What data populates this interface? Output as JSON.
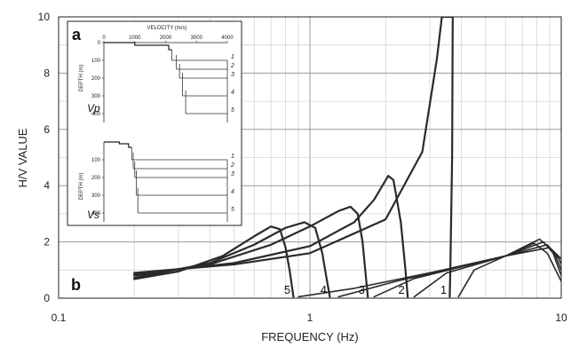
{
  "chart_data": {
    "type": "line",
    "panel_label": "b",
    "xlabel": "FREQUENCY (Hz)",
    "ylabel": "H/V VALUE",
    "xscale": "log",
    "xlim": [
      0.1,
      10
    ],
    "ylim": [
      0,
      10
    ],
    "x_ticks": [
      "0.1",
      "1",
      "10"
    ],
    "y_ticks": [
      "0",
      "2",
      "4",
      "6",
      "8",
      "10"
    ],
    "grid": true,
    "peak_curves": [
      {
        "label": "1",
        "points": [
          [
            0.2,
            0.9
          ],
          [
            0.5,
            1.2
          ],
          [
            1,
            1.6
          ],
          [
            2,
            2.8
          ],
          [
            2.8,
            5.2
          ],
          [
            3.2,
            8.5
          ],
          [
            3.35,
            10
          ],
          [
            3.7,
            10
          ],
          [
            3.68,
            5
          ],
          [
            3.62,
            1
          ],
          [
            3.6,
            0.05
          ]
        ]
      },
      {
        "label": "2",
        "points": [
          [
            0.2,
            0.85
          ],
          [
            0.5,
            1.25
          ],
          [
            1,
            1.85
          ],
          [
            1.5,
            2.7
          ],
          [
            1.8,
            3.5
          ],
          [
            2.05,
            4.35
          ],
          [
            2.15,
            4.2
          ],
          [
            2.3,
            2.7
          ],
          [
            2.4,
            1.0
          ],
          [
            2.45,
            0.05
          ]
        ]
      },
      {
        "label": "3",
        "points": [
          [
            0.2,
            0.8
          ],
          [
            0.4,
            1.2
          ],
          [
            0.7,
            1.9
          ],
          [
            1.0,
            2.55
          ],
          [
            1.3,
            3.1
          ],
          [
            1.45,
            3.25
          ],
          [
            1.55,
            3.0
          ],
          [
            1.62,
            2.0
          ],
          [
            1.66,
            1.0
          ],
          [
            1.7,
            0.05
          ]
        ]
      },
      {
        "label": "4",
        "points": [
          [
            0.2,
            0.72
          ],
          [
            0.4,
            1.25
          ],
          [
            0.6,
            1.9
          ],
          [
            0.8,
            2.5
          ],
          [
            0.95,
            2.7
          ],
          [
            1.05,
            2.5
          ],
          [
            1.12,
            1.6
          ],
          [
            1.16,
            0.8
          ],
          [
            1.2,
            0.05
          ]
        ]
      },
      {
        "label": "5",
        "points": [
          [
            0.2,
            0.68
          ],
          [
            0.3,
            0.95
          ],
          [
            0.45,
            1.5
          ],
          [
            0.6,
            2.2
          ],
          [
            0.7,
            2.55
          ],
          [
            0.76,
            2.45
          ],
          [
            0.8,
            1.8
          ],
          [
            0.83,
            1.0
          ],
          [
            0.86,
            0.05
          ]
        ]
      }
    ],
    "secondary_curves": [
      {
        "label": "1",
        "points": [
          [
            3.9,
            0.05
          ],
          [
            4.5,
            1.0
          ],
          [
            6,
            1.5
          ],
          [
            7.8,
            1.95
          ],
          [
            8.8,
            1.6
          ],
          [
            10,
            0.6
          ]
        ]
      },
      {
        "label": "2",
        "points": [
          [
            2.6,
            0.05
          ],
          [
            3.5,
            0.9
          ],
          [
            6,
            1.5
          ],
          [
            8.2,
            2.1
          ],
          [
            9.2,
            1.7
          ],
          [
            10,
            0.8
          ]
        ]
      },
      {
        "label": "3",
        "points": [
          [
            1.8,
            0.05
          ],
          [
            2.6,
            0.7
          ],
          [
            6,
            1.5
          ],
          [
            8.5,
            2.0
          ],
          [
            9.5,
            1.5
          ],
          [
            10,
            1.0
          ]
        ]
      },
      {
        "label": "4",
        "points": [
          [
            1.3,
            0.05
          ],
          [
            2.2,
            0.6
          ],
          [
            6,
            1.5
          ],
          [
            8.8,
            1.9
          ],
          [
            9.8,
            1.4
          ],
          [
            10,
            1.2
          ]
        ]
      },
      {
        "label": "5",
        "points": [
          [
            0.9,
            0.05
          ],
          [
            1.5,
            0.35
          ],
          [
            3,
            0.9
          ],
          [
            6,
            1.5
          ],
          [
            9,
            1.8
          ],
          [
            10,
            1.4
          ]
        ]
      }
    ],
    "inset": {
      "panel_label": "a",
      "top_plot": {
        "name": "Vp",
        "xlabel": "VELOCITY (m/s)",
        "ylabel": "DEPTH (m)",
        "x_ticks": [
          "0",
          "1000",
          "2000",
          "3000",
          "4000"
        ],
        "y_ticks": [
          "0",
          "100",
          "200",
          "300",
          "400"
        ],
        "xlim": [
          0,
          4000
        ],
        "ylim": [
          0,
          450
        ],
        "profile_labels": [
          "1",
          "2",
          "3",
          "4",
          "5"
        ],
        "interface_depths": [
          100,
          150,
          200,
          300,
          400
        ],
        "surface_steps": [
          [
            0,
            0
          ],
          [
            1000,
            0
          ],
          [
            1000,
            15
          ],
          [
            2100,
            15
          ],
          [
            2100,
            40
          ],
          [
            2200,
            40
          ]
        ],
        "columns": [
          {
            "v": 2200,
            "top": 40,
            "bottom": 100
          },
          {
            "v": 2350,
            "top": 70,
            "bottom": 150
          },
          {
            "v": 2450,
            "top": 120,
            "bottom": 200
          },
          {
            "v": 2550,
            "top": 170,
            "bottom": 300
          },
          {
            "v": 2650,
            "top": 270,
            "bottom": 400
          }
        ],
        "bedrock_velocity": 4000
      },
      "bottom_plot": {
        "name": "Vs",
        "ylabel": "DEPTH (m)",
        "y_ticks": [
          "100",
          "200",
          "300",
          "400"
        ],
        "xlim": [
          0,
          4000
        ],
        "ylim": [
          0,
          450
        ],
        "profile_labels": [
          "1",
          "2",
          "3",
          "4",
          "5"
        ],
        "interface_depths": [
          100,
          150,
          200,
          300,
          400
        ],
        "surface_steps": [
          [
            0,
            0
          ],
          [
            500,
            0
          ],
          [
            500,
            10
          ],
          [
            800,
            10
          ],
          [
            800,
            30
          ],
          [
            900,
            30
          ]
        ],
        "columns": [
          {
            "v": 900,
            "top": 30,
            "bottom": 100
          },
          {
            "v": 950,
            "top": 60,
            "bottom": 150
          },
          {
            "v": 1000,
            "top": 110,
            "bottom": 200
          },
          {
            "v": 1050,
            "top": 160,
            "bottom": 300
          },
          {
            "v": 1100,
            "top": 260,
            "bottom": 400
          }
        ],
        "bedrock_velocity": 4000
      }
    }
  }
}
